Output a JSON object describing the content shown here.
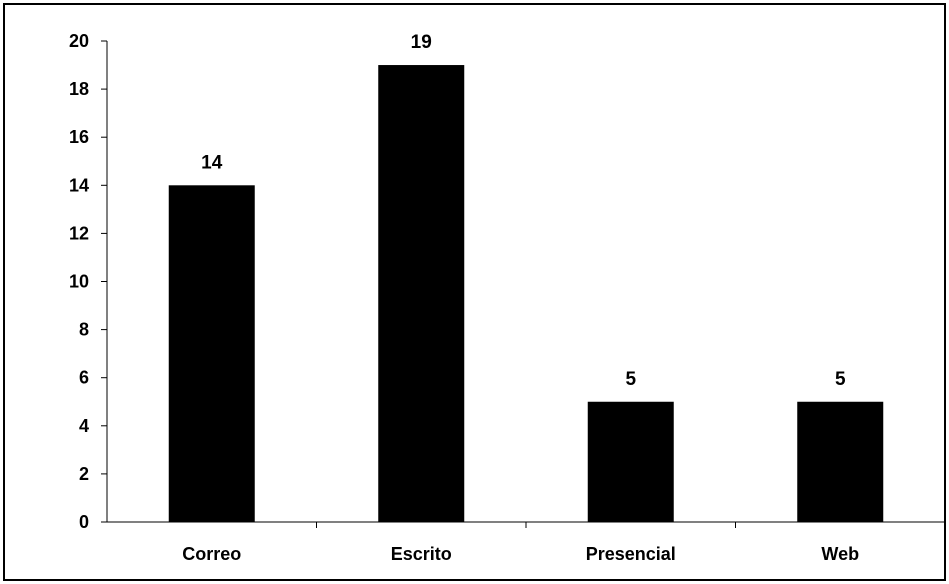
{
  "chart_data": {
    "type": "bar",
    "categories": [
      "Correo",
      "Escrito",
      "Presencial",
      "Web"
    ],
    "values": [
      14,
      19,
      5,
      5
    ],
    "data_labels": [
      "14",
      "19",
      "5",
      "5"
    ],
    "ylim": [
      0,
      20
    ],
    "y_ticks": [
      "0",
      "2",
      "4",
      "6",
      "8",
      "10",
      "12",
      "14",
      "16",
      "18",
      "20"
    ],
    "grid": false,
    "legend": "none",
    "bar_color": "#000000"
  }
}
